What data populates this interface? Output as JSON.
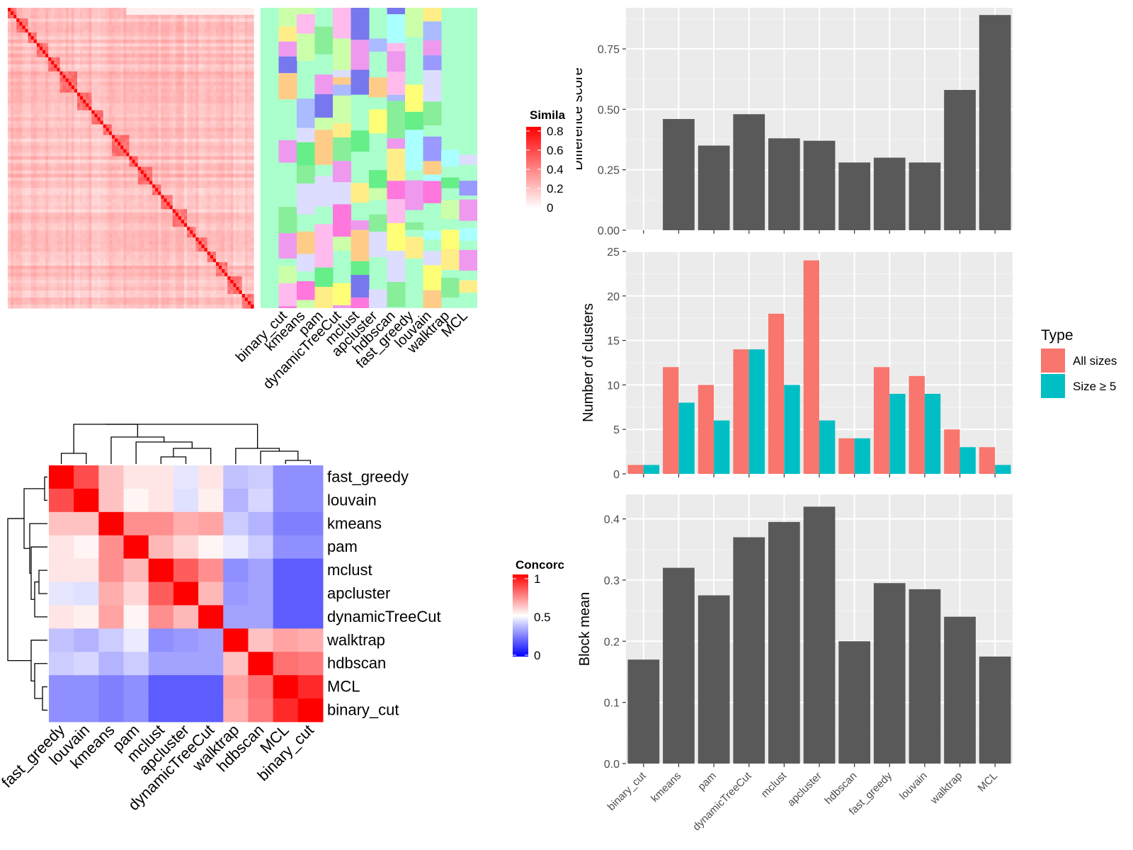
{
  "colors": {
    "heat_red": "#FF0000",
    "heat_white": "#FFFFFF",
    "heat_blue": "#0000FF",
    "panel_bg": "#EBEBEB",
    "bar_dark": "#595959",
    "type_all": "#F8766D",
    "type_size5": "#00BFC4",
    "cluster_bg": "#AAFFCC"
  },
  "methods_top": [
    "binary_cut",
    "kmeans",
    "pam",
    "dynamicTreeCut",
    "mclust",
    "apcluster",
    "hdbscan",
    "fast_greedy",
    "louvain",
    "walktrap",
    "MCL"
  ],
  "similarity_legend": {
    "title": "Simila",
    "ticks": [
      "0.8",
      "0.6",
      "0.4",
      "0.2",
      "0"
    ]
  },
  "concordance_legend": {
    "title": "Concorc",
    "ticks": [
      "1",
      "0.5",
      "0"
    ]
  },
  "concordance": {
    "rows": [
      "fast_greedy",
      "louvain",
      "kmeans",
      "pam",
      "mclust",
      "apcluster",
      "dynamicTreeCut",
      "walktrap",
      "hdbscan",
      "MCL",
      "binary_cut"
    ],
    "cols": [
      "fast_greedy",
      "louvain",
      "kmeans",
      "pam",
      "mclust",
      "apcluster",
      "dynamicTreeCut",
      "walktrap",
      "hdbscan",
      "MCL",
      "binary_cut"
    ],
    "values": [
      [
        1.0,
        0.85,
        0.62,
        0.55,
        0.55,
        0.45,
        0.55,
        0.38,
        0.4,
        0.28,
        0.28
      ],
      [
        0.85,
        1.0,
        0.62,
        0.52,
        0.55,
        0.44,
        0.53,
        0.35,
        0.42,
        0.28,
        0.28
      ],
      [
        0.62,
        0.62,
        1.0,
        0.72,
        0.72,
        0.66,
        0.68,
        0.4,
        0.35,
        0.25,
        0.25
      ],
      [
        0.55,
        0.52,
        0.72,
        1.0,
        0.64,
        0.58,
        0.52,
        0.46,
        0.4,
        0.28,
        0.28
      ],
      [
        0.55,
        0.55,
        0.72,
        0.64,
        1.0,
        0.82,
        0.72,
        0.28,
        0.32,
        0.18,
        0.18
      ],
      [
        0.45,
        0.44,
        0.66,
        0.58,
        0.82,
        1.0,
        0.64,
        0.3,
        0.32,
        0.18,
        0.18
      ],
      [
        0.55,
        0.53,
        0.68,
        0.52,
        0.72,
        0.64,
        1.0,
        0.32,
        0.32,
        0.18,
        0.18
      ],
      [
        0.38,
        0.35,
        0.4,
        0.46,
        0.28,
        0.3,
        0.32,
        1.0,
        0.62,
        0.68,
        0.66
      ],
      [
        0.4,
        0.42,
        0.35,
        0.4,
        0.32,
        0.32,
        0.32,
        0.62,
        1.0,
        0.78,
        0.76
      ],
      [
        0.28,
        0.28,
        0.25,
        0.28,
        0.18,
        0.18,
        0.18,
        0.68,
        0.78,
        1.0,
        0.92
      ],
      [
        0.28,
        0.28,
        0.25,
        0.28,
        0.18,
        0.18,
        0.18,
        0.66,
        0.76,
        0.92,
        1.0
      ]
    ]
  },
  "chart_data": [
    {
      "type": "heatmap",
      "panel": "term similarity matrix",
      "scale_min": 0,
      "scale_max": 0.8,
      "block_sizes": [
        3,
        4,
        3,
        4,
        4,
        6,
        5,
        4,
        3,
        6,
        3,
        5,
        3,
        4,
        5,
        3,
        4,
        3,
        4,
        5
      ]
    },
    {
      "type": "heatmap",
      "panel": "cluster assignment per method",
      "columns": [
        "binary_cut",
        "kmeans",
        "pam",
        "dynamicTreeCut",
        "mclust",
        "apcluster",
        "hdbscan",
        "fast_greedy",
        "louvain",
        "walktrap",
        "MCL"
      ]
    },
    {
      "type": "bar",
      "categories": [
        "binary_cut",
        "kmeans",
        "pam",
        "dynamicTreeCut",
        "mclust",
        "apcluster",
        "hdbscan",
        "fast_greedy",
        "louvain",
        "walktrap",
        "MCL"
      ],
      "values": [
        0,
        0.46,
        0.35,
        0.48,
        0.38,
        0.37,
        0.28,
        0.3,
        0.28,
        0.58,
        0.89
      ],
      "ylabel": "Difference score",
      "ylim": [
        0,
        0.92
      ],
      "yticks": [
        "0.00",
        "0.25",
        "0.50",
        "0.75"
      ],
      "ytick_values": [
        0,
        0.25,
        0.5,
        0.75
      ],
      "grid": true
    },
    {
      "type": "bar",
      "categories": [
        "binary_cut",
        "kmeans",
        "pam",
        "dynamicTreeCut",
        "mclust",
        "apcluster",
        "hdbscan",
        "fast_greedy",
        "louvain",
        "walktrap",
        "MCL"
      ],
      "series": [
        {
          "name": "All sizes",
          "values": [
            1,
            12,
            10,
            14,
            18,
            24,
            4,
            12,
            11,
            5,
            3
          ]
        },
        {
          "name": "Size ≥ 5",
          "values": [
            1,
            8,
            6,
            14,
            10,
            6,
            4,
            9,
            9,
            3,
            1
          ]
        }
      ],
      "ylabel": "Number of clusters",
      "ylim": [
        0,
        25
      ],
      "yticks": [
        "0",
        "5",
        "10",
        "15",
        "20",
        "25"
      ],
      "ytick_values": [
        0,
        5,
        10,
        15,
        20,
        25
      ],
      "legend_title": "Type",
      "legend_position": "right",
      "grid": true
    },
    {
      "type": "bar",
      "categories": [
        "binary_cut",
        "kmeans",
        "pam",
        "dynamicTreeCut",
        "mclust",
        "apcluster",
        "hdbscan",
        "fast_greedy",
        "louvain",
        "walktrap",
        "MCL"
      ],
      "values": [
        0.17,
        0.32,
        0.275,
        0.37,
        0.395,
        0.42,
        0.2,
        0.295,
        0.285,
        0.24,
        0.175
      ],
      "ylabel": "Block mean",
      "ylim": [
        0,
        0.44
      ],
      "yticks": [
        "0.0",
        "0.1",
        "0.2",
        "0.3",
        "0.4"
      ],
      "ytick_values": [
        0,
        0.1,
        0.2,
        0.3,
        0.4
      ],
      "grid": true
    }
  ]
}
